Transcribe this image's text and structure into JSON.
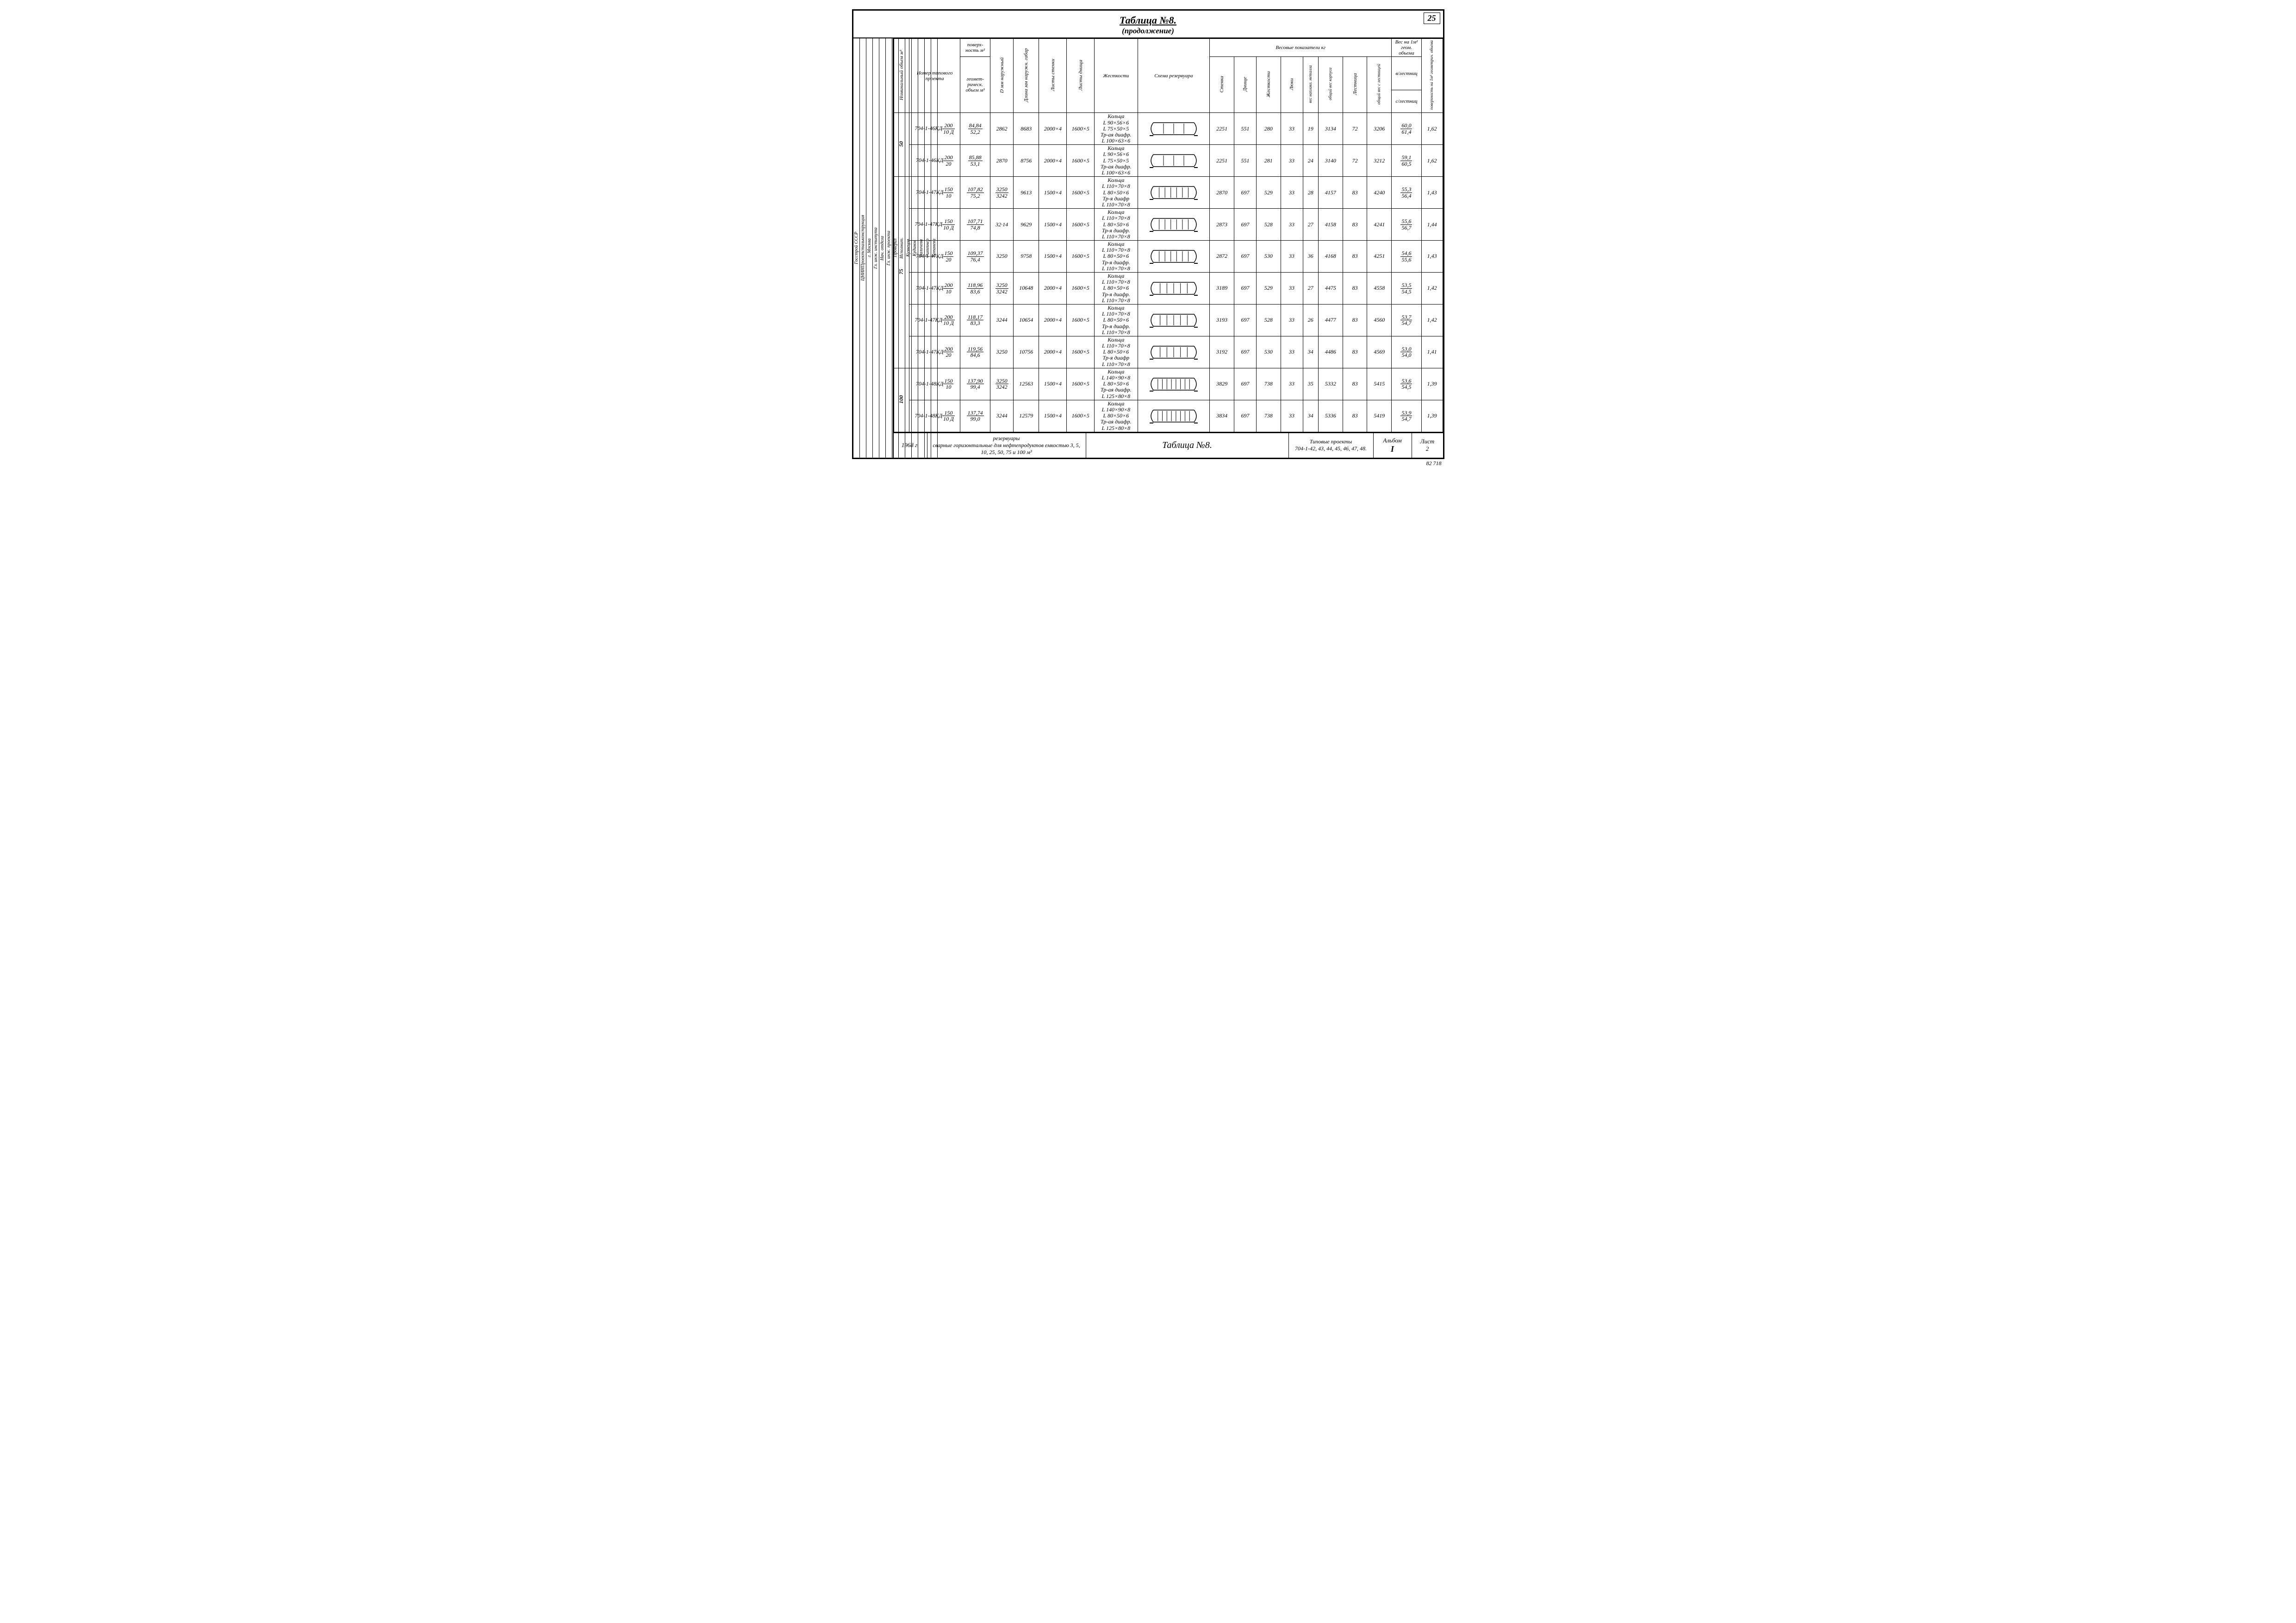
{
  "page_number": "25",
  "title": "Таблица №8.",
  "subtitle": "(продолжение)",
  "side_labels": [
    "Госстрой СССР",
    "ЦНИИПроектстальконструкция",
    "г. Москва",
    "Гл. инж. института",
    "Нач. отдела",
    "Гл. инж. проекта",
    "Проверил",
    "Исполнит.",
    "Кузнецов",
    "Кудинов",
    "Валичева",
    "Риттнер",
    "Копанева"
  ],
  "headers": {
    "nom_vol": "Номинальный объем м³",
    "project_no": "Номер типового проекта",
    "surface_top": "поверх-ность м²",
    "surface_bot": "геомет-рическ. объем м³",
    "dmm": "D мм наружный",
    "length": "Длина мм наружн. габар",
    "sheets_wall": "Листы стенки",
    "sheets_bottom": "Листы днища",
    "stiffness": "Жесткости",
    "schema": "Схема резервуара",
    "weight_group": "Весовые       показатели кг",
    "w_wall": "Стенка",
    "w_bottom": "Днище",
    "w_stiff": "Жесткости",
    "w_hatch": "Люки",
    "w_fill": "вес наплавл. металла",
    "w_total": "общий вес корпуса",
    "w_stair": "Лестница",
    "w_all": "общий вес с лестницей",
    "per_top": "Вес на 1м² геом. объема",
    "per_a": "в/лестниц",
    "per_b": "с/лестниц",
    "coef": "поверхность на 1м³ геометрич. объема"
  },
  "groups": [
    {
      "vol": "50",
      "rows": [
        {
          "num": "704-1-46КД",
          "numfrac": [
            "200",
            "10 Д"
          ],
          "surf": [
            "84,84",
            "52,2"
          ],
          "d": "2862",
          "len": "8683",
          "sw": "2000×4",
          "sb": "1600×5",
          "stiff": "Кольца\nL 90×56×6\nL 75×50×5\nТр-ая диафр.\nL 100×63×6",
          "schema": 3,
          "w": [
            "2251",
            "551",
            "280",
            "33",
            "19",
            "3134",
            "72",
            "3206"
          ],
          "per": [
            "60,0",
            "61,4"
          ],
          "coef": "1,62"
        },
        {
          "num": "704-1-46КД",
          "numfrac": [
            "200",
            "20"
          ],
          "surf": [
            "85,88",
            "53,1"
          ],
          "d": "2870",
          "len": "8756",
          "sw": "2000×4",
          "sb": "1600×5",
          "stiff": "Кольца\nL 90×56×6\nL 75×50×5\nТр-ая диафр.\nL 100×63×6",
          "schema": 3,
          "w": [
            "2251",
            "551",
            "281",
            "33",
            "24",
            "3140",
            "72",
            "3212"
          ],
          "per": [
            "59,1",
            "60,5"
          ],
          "coef": "1,62"
        }
      ]
    },
    {
      "vol": "75",
      "rows": [
        {
          "num": "704-1-47КД",
          "numfrac": [
            "150",
            "10"
          ],
          "surf": [
            "107,82",
            "75,2"
          ],
          "d": [
            "3250",
            "3242"
          ],
          "len": "9613",
          "sw": "1500×4",
          "sb": "1600×5",
          "stiff": "Кольца\nL 110×70×8\nL 80×50×6\nТр-я диафр\nL 110×70×8",
          "schema": 6,
          "w": [
            "2870",
            "697",
            "529",
            "33",
            "28",
            "4157",
            "83",
            "4240"
          ],
          "per": [
            "55,3",
            "56,4"
          ],
          "coef": "1,43"
        },
        {
          "num": "704-1-47КД",
          "numfrac": [
            "150",
            "10 Д"
          ],
          "surf": [
            "107,71",
            "74,8"
          ],
          "d": "32·14",
          "len": "9629",
          "sw": "1500×4",
          "sb": "1600×5",
          "stiff": "Кольца\nL 110×70×8\nL 80×50×6\nТр-я диафр.\nL 110×70×8",
          "schema": 6,
          "w": [
            "2873",
            "697",
            "528",
            "33",
            "27",
            "4158",
            "83",
            "4241"
          ],
          "per": [
            "55,6",
            "56,7"
          ],
          "coef": "1,44"
        },
        {
          "num": "704-1-47КД",
          "numfrac": [
            "150",
            "20"
          ],
          "surf": [
            "109,37",
            "76,4"
          ],
          "d": "3250",
          "len": "9758",
          "sw": "1500×4",
          "sb": "1600×5",
          "stiff": "Кольца\nL 110×70×8\nL 80×50×6\nТр-я диафр.\nL 110×70×8",
          "schema": 6,
          "w": [
            "2872",
            "697",
            "530",
            "33",
            "36",
            "4168",
            "83",
            "4251"
          ],
          "per": [
            "54,6",
            "55,6"
          ],
          "coef": "1,43"
        },
        {
          "num": "704-1-47КД",
          "numfrac": [
            "200",
            "10"
          ],
          "surf": [
            "118,96",
            "83,6"
          ],
          "d": [
            "3250",
            "3242"
          ],
          "len": "10648",
          "sw": "2000×4",
          "sb": "1600×5",
          "stiff": "Кольца\nL 110×70×8\nL 80×50×6\nТр-я диафр.\nL 110×70×8",
          "schema": 5,
          "w": [
            "3189",
            "697",
            "529",
            "33",
            "27",
            "4475",
            "83",
            "4558"
          ],
          "per": [
            "53,5",
            "54,5"
          ],
          "coef": "1,42"
        },
        {
          "num": "704-1-47КД",
          "numfrac": [
            "200",
            "10 Д"
          ],
          "surf": [
            "118,17",
            "83,3"
          ],
          "d": "3244",
          "len": "10654",
          "sw": "2000×4",
          "sb": "1600×5",
          "stiff": "Кольца\nL 110×70×8\nL 80×50×6\nТр-я диафр.\nL 110×70×8",
          "schema": 5,
          "w": [
            "3193",
            "697",
            "528",
            "33",
            "26",
            "4477",
            "83",
            "4560"
          ],
          "per": [
            "53,7",
            "54,7"
          ],
          "coef": "1,42"
        },
        {
          "num": "704-1-47КД",
          "numfrac": [
            "200",
            "20"
          ],
          "surf": [
            "119,56",
            "84,6"
          ],
          "d": "3250",
          "len": "10756",
          "sw": "2000×4",
          "sb": "1600×5",
          "stiff": "Кольца\nL 110×70×8\nL 80×50×6\nТр-я диафр\nL 110×70×8",
          "schema": 5,
          "w": [
            "3192",
            "697",
            "530",
            "33",
            "34",
            "4486",
            "83",
            "4569"
          ],
          "per": [
            "53,0",
            "54,0"
          ],
          "coef": "1,41"
        }
      ]
    },
    {
      "vol": "100",
      "rows": [
        {
          "num": "704-1-48КД",
          "numfrac": [
            "150",
            "10"
          ],
          "surf": [
            "137,90",
            "99,4"
          ],
          "d": [
            "3250",
            "3242"
          ],
          "len": "12563",
          "sw": "1500×4",
          "sb": "1600×5",
          "stiff": "Кольца\nL 140×90×8\nL 80×50×6\nТр-ая диафр.\nL 125×80×8",
          "schema": 8,
          "w": [
            "3829",
            "697",
            "738",
            "33",
            "35",
            "5332",
            "83",
            "5415"
          ],
          "per": [
            "53,6",
            "54,5"
          ],
          "coef": "1,39"
        },
        {
          "num": "704-1-48КД",
          "numfrac": [
            "150",
            "10 Д"
          ],
          "surf": [
            "137,74",
            "99,0"
          ],
          "d": "3244",
          "len": "12579",
          "sw": "1500×4",
          "sb": "1600×5",
          "stiff": "Кольца\nL 140×90×8\nL 80×50×6\nТр-ая диафр.\nL 125×80×8",
          "schema": 8,
          "w": [
            "3834",
            "697",
            "738",
            "33",
            "34",
            "5336",
            "83",
            "5419"
          ],
          "per": [
            "53,9",
            "54,7"
          ],
          "coef": "1,39"
        }
      ]
    }
  ],
  "footer": {
    "year": "1968 г.",
    "desc_top": "резервуары",
    "desc": "сварные горизонтальные для нефтепродуктов емкостью 3, 5, 10, 25, 50, 75 и 100 м³",
    "center": "Таблица №8.",
    "proj_top": "Типовые проекты",
    "proj": "704-1-42, 43, 44, 45, 46, 47, 48.",
    "album_top": "Альбом",
    "album": "I",
    "sheet_top": "Лист",
    "sheet": "2"
  },
  "bottom_code": "82 718"
}
